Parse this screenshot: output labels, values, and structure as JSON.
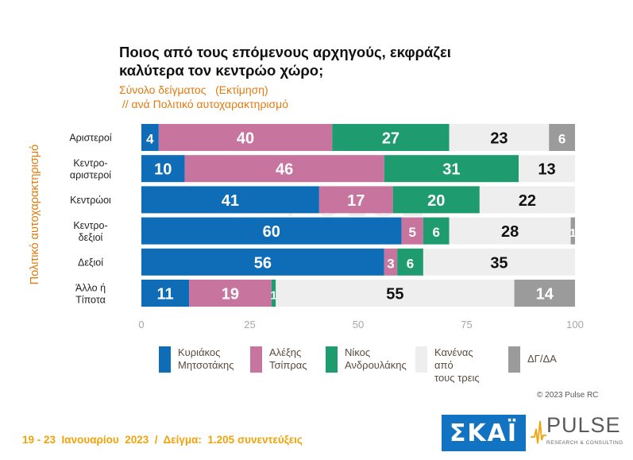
{
  "header": {
    "title": "Ποιος από τους επόμενους αρχηγούς, εκφράζει καλύτερα τον κεντρώο χώρο;",
    "subtitle_line1": "Σύνολο δείγματος   (Εκτίμηση)",
    "subtitle_line2": " // ανά Πολιτικό αυτοχαρακτηρισμό"
  },
  "chart_data": {
    "type": "bar",
    "orientation": "horizontal-stacked",
    "categories": [
      "Αριστεροί",
      "Κεντρο-αριστεροί",
      "Κεντρώοι",
      "Κεντρο-δεξιοί",
      "Δεξιοί",
      "Άλλο ή Τίποτα"
    ],
    "category_lines": [
      [
        "Αριστεροί"
      ],
      [
        "Κεντρο-",
        "αριστεροί"
      ],
      [
        "Κεντρώοι"
      ],
      [
        "Κεντρο-",
        "δεξιοί"
      ],
      [
        "Δεξιοί"
      ],
      [
        "Άλλο ή",
        "Τίποτα"
      ]
    ],
    "series": [
      {
        "name": "Κυριάκος Μητσοτάκης",
        "color": "#0f6db8",
        "values": [
          4,
          10,
          41,
          60,
          56,
          11
        ]
      },
      {
        "name": "Αλέξης Τσίπρας",
        "color": "#c7749f",
        "values": [
          40,
          46,
          17,
          5,
          3,
          19
        ]
      },
      {
        "name": "Νίκος Ανδρουλάκης",
        "color": "#1f9c6f",
        "values": [
          27,
          31,
          20,
          6,
          6,
          1
        ]
      },
      {
        "name": "Κανένας από τους τρεις",
        "color": "#eeeeee",
        "values": [
          23,
          13,
          22,
          28,
          35,
          55
        ]
      },
      {
        "name": "ΔΓ/ΔΑ",
        "color": "#9b9b9b",
        "values": [
          6,
          0,
          0,
          1,
          0,
          14
        ]
      }
    ],
    "xlim": [
      0,
      100
    ],
    "xticks": [
      "0",
      "25",
      "50",
      "75",
      "100"
    ],
    "ylabel": "Πολιτικό αυτοχαρακτηρισμό",
    "legend_position": "bottom"
  },
  "legend": {
    "items": [
      {
        "line1": "Κυριάκος",
        "line2": "Μητσοτάκης",
        "color": "#0f6db8"
      },
      {
        "line1": "Αλέξης",
        "line2": "Τσίπρας",
        "color": "#c7749f"
      },
      {
        "line1": "Νίκος",
        "line2": "Ανδρουλάκης",
        "color": "#1f9c6f"
      },
      {
        "line1": "Κανένας από",
        "line2": "τους τρεις",
        "color": "#eeeeee"
      },
      {
        "line1": "ΔΓ/ΔΑ",
        "line2": "",
        "color": "#9b9b9b"
      }
    ]
  },
  "watermark": {
    "text": "PULSE"
  },
  "copyright": "© 2023 Pulse RC",
  "footer": "19 - 23  Ιανουαρίου  2023  /  Δείγμα:  1.205 συνεντεύξεις",
  "logos": {
    "skai": "ΣΚΑΪ",
    "pulse": "PULSE",
    "pulse_sub": "RESEARCH & CONSULTING"
  }
}
